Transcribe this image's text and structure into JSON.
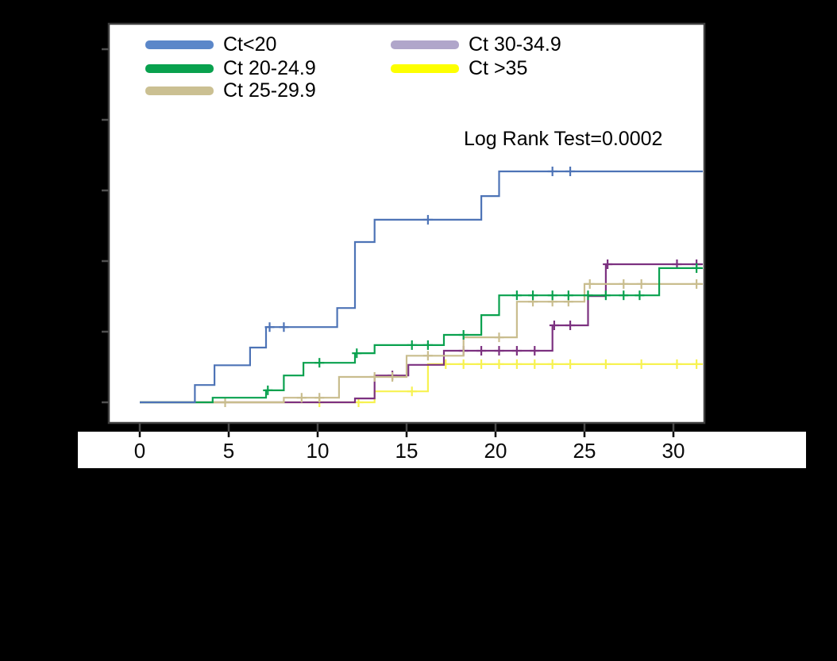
{
  "figure": {
    "background_color": "#000000",
    "plot_background_color": "#ffffff",
    "frame_color": "#3f3f3f",
    "axis_strip_color": "#ffffff"
  },
  "chart_data": {
    "type": "line",
    "subtype": "kaplan-meier-cumulative-incidence-step",
    "title": "",
    "annotation": "Log Rank Test=0.0002",
    "legend_position": "top-left-two-columns",
    "x_axis": {
      "tick_labels": [
        "0",
        "5",
        "10",
        "15",
        "20",
        "25",
        "30"
      ],
      "tick_values": [
        0,
        5,
        10,
        15,
        20,
        25,
        30
      ],
      "range": [
        0,
        31.8
      ]
    },
    "y_axis": {
      "tick_values": [
        0,
        0.2,
        0.4,
        0.6,
        0.8,
        1.0
      ],
      "tick_labels_visible": false,
      "range": [
        0,
        1.0
      ]
    },
    "series": [
      {
        "name": "Ct<20",
        "line_color": "#4d73b6",
        "legend_color": "#5b87c9",
        "steps": [
          [
            0,
            0
          ],
          [
            3.1,
            0.049
          ],
          [
            4.2,
            0.105
          ],
          [
            6.2,
            0.155
          ],
          [
            7.1,
            0.213
          ],
          [
            11.1,
            0.267
          ],
          [
            12.1,
            0.454
          ],
          [
            13.2,
            0.517
          ],
          [
            19.2,
            0.584
          ],
          [
            20.2,
            0.654
          ]
        ],
        "censors": [
          [
            7.3,
            0.213
          ],
          [
            8.1,
            0.213
          ],
          [
            16.2,
            0.517
          ],
          [
            23.2,
            0.654
          ],
          [
            24.2,
            0.654
          ]
        ],
        "final_value": 0.654
      },
      {
        "name": "Ct 20-24.9",
        "line_color": "#09a14e",
        "legend_color": "#09a14e",
        "steps": [
          [
            0,
            0
          ],
          [
            4.1,
            0.013
          ],
          [
            7.1,
            0.034
          ],
          [
            8.1,
            0.076
          ],
          [
            9.2,
            0.112
          ],
          [
            12.1,
            0.139
          ],
          [
            13.2,
            0.162
          ],
          [
            17.1,
            0.191
          ],
          [
            19.2,
            0.247
          ],
          [
            20.2,
            0.303
          ],
          [
            29.2,
            0.38
          ]
        ],
        "censors": [
          [
            7.2,
            0.034
          ],
          [
            10.1,
            0.112
          ],
          [
            12.2,
            0.139
          ],
          [
            15.3,
            0.162
          ],
          [
            16.2,
            0.162
          ],
          [
            18.2,
            0.191
          ],
          [
            21.2,
            0.303
          ],
          [
            22.1,
            0.303
          ],
          [
            23.2,
            0.303
          ],
          [
            24.1,
            0.303
          ],
          [
            25.2,
            0.303
          ],
          [
            26.2,
            0.303
          ],
          [
            27.2,
            0.303
          ],
          [
            28.1,
            0.303
          ],
          [
            31.3,
            0.38
          ]
        ],
        "final_value": 0.38
      },
      {
        "name": "Ct 25-29.9",
        "line_color": "#c9bd8e",
        "legend_color": "#cbc092",
        "steps": [
          [
            0,
            0
          ],
          [
            8.1,
            0.013
          ],
          [
            11.2,
            0.072
          ],
          [
            15.0,
            0.132
          ],
          [
            18.2,
            0.184
          ],
          [
            21.2,
            0.285
          ],
          [
            25.0,
            0.335
          ]
        ],
        "censors": [
          [
            4.8,
            0
          ],
          [
            9.1,
            0.013
          ],
          [
            10.1,
            0.013
          ],
          [
            13.2,
            0.072
          ],
          [
            14.2,
            0.072
          ],
          [
            16.2,
            0.132
          ],
          [
            20.2,
            0.184
          ],
          [
            22.1,
            0.285
          ],
          [
            23.2,
            0.285
          ],
          [
            24.1,
            0.285
          ],
          [
            25.3,
            0.335
          ],
          [
            27.2,
            0.335
          ],
          [
            28.2,
            0.335
          ],
          [
            31.3,
            0.335
          ]
        ],
        "final_value": 0.335
      },
      {
        "name": "Ct 30-34.9",
        "line_color": "#7c3180",
        "legend_color": "#b0a6ca",
        "steps": [
          [
            0,
            0
          ],
          [
            12.1,
            0.011
          ],
          [
            13.2,
            0.076
          ],
          [
            15.1,
            0.106
          ],
          [
            17.1,
            0.146
          ],
          [
            23.2,
            0.218
          ],
          [
            25.2,
            0.301
          ],
          [
            26.2,
            0.391
          ]
        ],
        "censors": [
          [
            14.2,
            0.076
          ],
          [
            18.2,
            0.146
          ],
          [
            19.2,
            0.146
          ],
          [
            20.2,
            0.146
          ],
          [
            21.2,
            0.146
          ],
          [
            22.2,
            0.146
          ],
          [
            23.3,
            0.218
          ],
          [
            24.2,
            0.218
          ],
          [
            26.3,
            0.391
          ],
          [
            30.2,
            0.391
          ],
          [
            31.3,
            0.391
          ]
        ],
        "final_value": 0.391
      },
      {
        "name": "Ct >35",
        "line_color": "#f7f251",
        "legend_color": "#fdff00",
        "steps": [
          [
            0,
            0
          ],
          [
            13.2,
            0.031
          ],
          [
            16.2,
            0.108
          ]
        ],
        "censors": [
          [
            10.1,
            0
          ],
          [
            12.3,
            0
          ],
          [
            15.3,
            0.031
          ],
          [
            17.2,
            0.108
          ],
          [
            18.2,
            0.108
          ],
          [
            19.2,
            0.108
          ],
          [
            20.2,
            0.108
          ],
          [
            21.2,
            0.108
          ],
          [
            22.2,
            0.108
          ],
          [
            23.2,
            0.108
          ],
          [
            24.2,
            0.108
          ],
          [
            26.2,
            0.108
          ],
          [
            28.2,
            0.108
          ],
          [
            30.2,
            0.108
          ],
          [
            31.3,
            0.108
          ]
        ],
        "final_value": 0.108
      }
    ]
  }
}
